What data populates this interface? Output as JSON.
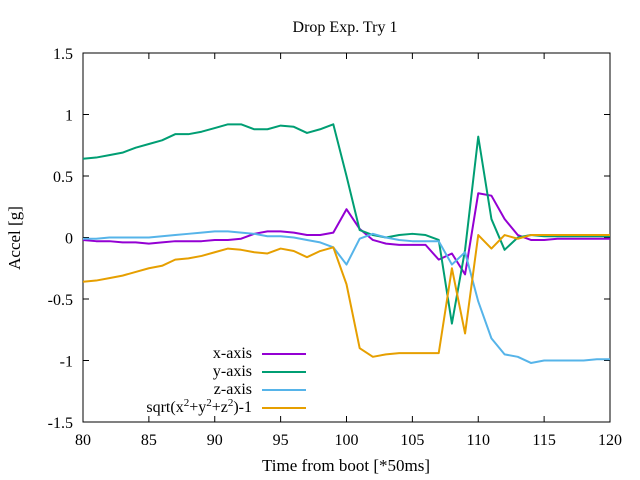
{
  "chart_data": {
    "type": "line",
    "title": "Drop Exp. Try 1",
    "xlabel": "Time from boot [*50ms]",
    "ylabel": "Accel [g]",
    "xlim": [
      80,
      120
    ],
    "ylim": [
      -1.5,
      1.5
    ],
    "xticks": [
      80,
      85,
      90,
      95,
      100,
      105,
      110,
      115,
      120
    ],
    "yticks": [
      -1.5,
      -1,
      -0.5,
      0,
      0.5,
      1,
      1.5
    ],
    "xtick_labels": [
      "80",
      "85",
      "90",
      "95",
      "100",
      "105",
      "110",
      "115",
      "120"
    ],
    "ytick_labels": [
      "-1.5",
      "-1",
      "-0.5",
      "0",
      "0.5",
      "1",
      "1.5"
    ],
    "grid": false,
    "legend_position": "bottom-left",
    "x": [
      80,
      81,
      82,
      83,
      84,
      85,
      86,
      87,
      88,
      89,
      90,
      91,
      92,
      93,
      94,
      95,
      96,
      97,
      98,
      99,
      100,
      101,
      102,
      103,
      104,
      105,
      106,
      107,
      108,
      109,
      110,
      111,
      112,
      113,
      114,
      115,
      116,
      117,
      118,
      119,
      120
    ],
    "series": [
      {
        "name": "x-axis",
        "color": "#9400d3",
        "values": [
          -0.02,
          -0.03,
          -0.03,
          -0.04,
          -0.04,
          -0.05,
          -0.04,
          -0.03,
          -0.03,
          -0.03,
          -0.02,
          -0.02,
          -0.01,
          0.03,
          0.05,
          0.05,
          0.04,
          0.02,
          0.02,
          0.04,
          0.23,
          0.07,
          -0.02,
          -0.05,
          -0.06,
          -0.06,
          -0.06,
          -0.18,
          -0.13,
          -0.3,
          0.36,
          0.34,
          0.15,
          0.02,
          -0.02,
          -0.02,
          -0.01,
          -0.01,
          -0.01,
          -0.01,
          -0.01
        ]
      },
      {
        "name": "y-axis",
        "color": "#009e73",
        "values": [
          0.64,
          0.65,
          0.67,
          0.69,
          0.73,
          0.76,
          0.79,
          0.84,
          0.84,
          0.86,
          0.89,
          0.92,
          0.92,
          0.88,
          0.88,
          0.91,
          0.9,
          0.85,
          0.88,
          0.92,
          0.5,
          0.06,
          0.02,
          0.0,
          0.02,
          0.03,
          0.02,
          -0.02,
          -0.7,
          -0.1,
          0.82,
          0.15,
          -0.1,
          0.0,
          0.02,
          0.01,
          0.01,
          0.01,
          0.01,
          0.01,
          0.01
        ]
      },
      {
        "name": "z-axis",
        "color": "#56b4e9",
        "values": [
          -0.01,
          -0.01,
          0.0,
          0.0,
          0.0,
          0.0,
          0.01,
          0.02,
          0.03,
          0.04,
          0.05,
          0.05,
          0.04,
          0.03,
          0.01,
          0.01,
          0.0,
          -0.02,
          -0.04,
          -0.08,
          -0.22,
          -0.01,
          0.03,
          0.0,
          -0.02,
          -0.03,
          -0.03,
          -0.03,
          -0.22,
          -0.12,
          -0.52,
          -0.82,
          -0.95,
          -0.97,
          -1.02,
          -1.0,
          -1.0,
          -1.0,
          -1.0,
          -0.99,
          -0.99
        ]
      },
      {
        "name": "sqrt(x²+y²+z²)-1",
        "color": "#e69f00",
        "values": [
          -0.36,
          -0.35,
          -0.33,
          -0.31,
          -0.28,
          -0.25,
          -0.23,
          -0.18,
          -0.17,
          -0.15,
          -0.12,
          -0.09,
          -0.1,
          -0.12,
          -0.13,
          -0.09,
          -0.11,
          -0.16,
          -0.11,
          -0.08,
          -0.38,
          -0.9,
          -0.97,
          -0.95,
          -0.94,
          -0.94,
          -0.94,
          -0.94,
          -0.25,
          -0.78,
          0.02,
          -0.09,
          0.02,
          -0.01,
          0.02,
          0.02,
          0.02,
          0.02,
          0.02,
          0.02,
          0.02
        ]
      }
    ]
  },
  "legend": {
    "x_label": "x-axis",
    "y_label": "y-axis",
    "z_label": "z-axis",
    "mag_prefix": "sqrt(x",
    "mag_sup1": "2",
    "mag_plus1": "+y",
    "mag_sup2": "2",
    "mag_plus2": "+z",
    "mag_sup3": "2",
    "mag_suffix": ")-1"
  }
}
